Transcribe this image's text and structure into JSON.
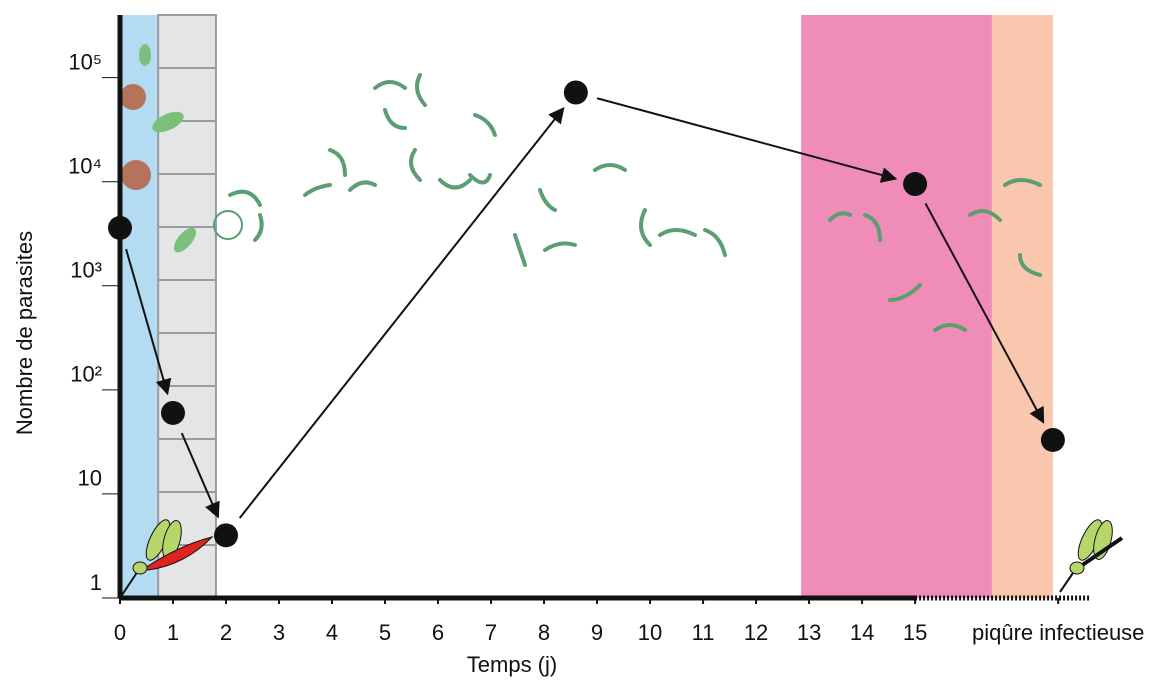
{
  "chart_data": {
    "type": "scatter",
    "x_label": "Temps (j)",
    "y_label": "Nombre de parasites",
    "log_y": true,
    "series": [
      {
        "color": "#111111",
        "x": [
          0,
          1,
          2,
          8.6,
          15,
          17.6
        ],
        "values": [
          3600,
          60,
          4,
          72000,
          9500,
          33
        ]
      }
    ],
    "xlim": [
      0,
      18.3
    ],
    "ylim": [
      1,
      400000
    ],
    "xticks": [
      0,
      1,
      2,
      3,
      4,
      5,
      6,
      7,
      8,
      9,
      10,
      11,
      12,
      13,
      14,
      15,
      {
        "value": 17.7,
        "label": "piqûre infectieuse"
      }
    ],
    "yticks": [
      1,
      10,
      {
        "value": 100,
        "label": "10²"
      },
      {
        "value": 1000,
        "label": "10³"
      },
      {
        "value": 10000,
        "label": "10⁴"
      },
      {
        "value": 100000,
        "label": "10⁵"
      }
    ],
    "shaded_regions": [
      {
        "from": 0,
        "to": 0.72,
        "color": "#b3dcf3"
      },
      {
        "from": 0.72,
        "to": 1.81,
        "color": "#e4e5e7"
      },
      {
        "from": 12.85,
        "to": 16.45,
        "color": "#f08cb8"
      },
      {
        "from": 16.45,
        "to": 17.6,
        "color": "#f9c7ad"
      }
    ]
  }
}
